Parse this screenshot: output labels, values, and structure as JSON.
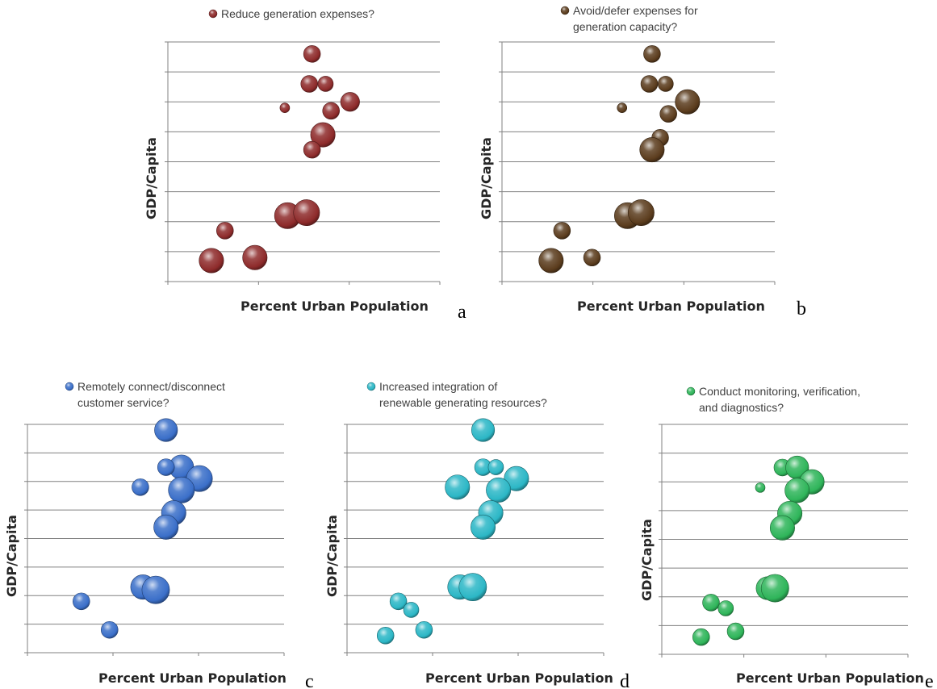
{
  "chart_data": [
    {
      "type": "scatter",
      "panel_label": "a",
      "legend": [
        "Reduce generation expenses?"
      ],
      "xlabel": "Percent Urban Population",
      "ylabel": "GDP/Capita",
      "color": "#8e2b2b",
      "grid": true,
      "legend_position": "top",
      "points": [
        {
          "x": 0.53,
          "y": 7.6,
          "size": 0.55
        },
        {
          "x": 0.52,
          "y": 6.6,
          "size": 0.55
        },
        {
          "x": 0.58,
          "y": 6.6,
          "size": 0.5
        },
        {
          "x": 0.43,
          "y": 5.8,
          "size": 0.3
        },
        {
          "x": 0.6,
          "y": 5.7,
          "size": 0.55
        },
        {
          "x": 0.67,
          "y": 6.0,
          "size": 0.62
        },
        {
          "x": 0.57,
          "y": 4.9,
          "size": 0.8
        },
        {
          "x": 0.53,
          "y": 4.4,
          "size": 0.55
        },
        {
          "x": 0.44,
          "y": 2.2,
          "size": 0.85
        },
        {
          "x": 0.51,
          "y": 2.3,
          "size": 0.85
        },
        {
          "x": 0.21,
          "y": 1.7,
          "size": 0.55
        },
        {
          "x": 0.16,
          "y": 0.7,
          "size": 0.8
        },
        {
          "x": 0.32,
          "y": 0.8,
          "size": 0.8
        }
      ]
    },
    {
      "type": "scatter",
      "panel_label": "b",
      "legend": [
        "Avoid/defer expenses for",
        "generation capacity?"
      ],
      "xlabel": "Percent Urban Population",
      "ylabel": "GDP/Capita",
      "color": "#5c3d1e",
      "grid": true,
      "legend_position": "top",
      "points": [
        {
          "x": 0.55,
          "y": 7.6,
          "size": 0.55
        },
        {
          "x": 0.54,
          "y": 6.6,
          "size": 0.55
        },
        {
          "x": 0.6,
          "y": 6.6,
          "size": 0.5
        },
        {
          "x": 0.44,
          "y": 5.8,
          "size": 0.3
        },
        {
          "x": 0.61,
          "y": 5.6,
          "size": 0.55
        },
        {
          "x": 0.68,
          "y": 6.0,
          "size": 0.8
        },
        {
          "x": 0.58,
          "y": 4.8,
          "size": 0.55
        },
        {
          "x": 0.55,
          "y": 4.4,
          "size": 0.8
        },
        {
          "x": 0.46,
          "y": 2.2,
          "size": 0.85
        },
        {
          "x": 0.51,
          "y": 2.3,
          "size": 0.85
        },
        {
          "x": 0.22,
          "y": 1.7,
          "size": 0.55
        },
        {
          "x": 0.18,
          "y": 0.7,
          "size": 0.8
        },
        {
          "x": 0.33,
          "y": 0.8,
          "size": 0.55
        }
      ]
    },
    {
      "type": "scatter",
      "panel_label": "c",
      "legend": [
        "Remotely connect/disconnect",
        "customer service?"
      ],
      "xlabel": "Percent Urban Population",
      "ylabel": "GDP/Capita",
      "color": "#3b6fc9",
      "grid": true,
      "legend_position": "top",
      "points": [
        {
          "x": 0.54,
          "y": 7.8,
          "size": 0.75
        },
        {
          "x": 0.6,
          "y": 6.5,
          "size": 0.8
        },
        {
          "x": 0.54,
          "y": 6.5,
          "size": 0.55
        },
        {
          "x": 0.67,
          "y": 6.1,
          "size": 0.85
        },
        {
          "x": 0.6,
          "y": 5.7,
          "size": 0.85
        },
        {
          "x": 0.44,
          "y": 5.8,
          "size": 0.55
        },
        {
          "x": 0.57,
          "y": 4.9,
          "size": 0.8
        },
        {
          "x": 0.54,
          "y": 4.4,
          "size": 0.8
        },
        {
          "x": 0.45,
          "y": 2.3,
          "size": 0.8
        },
        {
          "x": 0.5,
          "y": 2.2,
          "size": 0.9
        },
        {
          "x": 0.21,
          "y": 1.8,
          "size": 0.55
        },
        {
          "x": 0.32,
          "y": 0.8,
          "size": 0.55
        }
      ]
    },
    {
      "type": "scatter",
      "panel_label": "d",
      "legend": [
        "Increased integration of",
        "renewable generating resources?"
      ],
      "xlabel": "Percent Urban Population",
      "ylabel": "GDP/Capita",
      "color": "#2cb7c6",
      "grid": true,
      "legend_position": "top",
      "points": [
        {
          "x": 0.53,
          "y": 7.8,
          "size": 0.75
        },
        {
          "x": 0.53,
          "y": 6.5,
          "size": 0.55
        },
        {
          "x": 0.58,
          "y": 6.5,
          "size": 0.5
        },
        {
          "x": 0.66,
          "y": 6.1,
          "size": 0.8
        },
        {
          "x": 0.43,
          "y": 5.8,
          "size": 0.8
        },
        {
          "x": 0.59,
          "y": 5.7,
          "size": 0.8
        },
        {
          "x": 0.56,
          "y": 4.9,
          "size": 0.8
        },
        {
          "x": 0.53,
          "y": 4.4,
          "size": 0.8
        },
        {
          "x": 0.44,
          "y": 2.3,
          "size": 0.8
        },
        {
          "x": 0.49,
          "y": 2.3,
          "size": 0.9
        },
        {
          "x": 0.2,
          "y": 1.8,
          "size": 0.55
        },
        {
          "x": 0.25,
          "y": 1.5,
          "size": 0.5
        },
        {
          "x": 0.3,
          "y": 0.8,
          "size": 0.55
        },
        {
          "x": 0.15,
          "y": 0.6,
          "size": 0.55
        }
      ]
    },
    {
      "type": "scatter",
      "panel_label": "e",
      "legend": [
        "Conduct monitoring, verification,",
        "and diagnostics?"
      ],
      "xlabel": "Percent Urban Population",
      "ylabel": "GDP/Capita",
      "color": "#2fb55a",
      "grid": true,
      "legend_position": "top",
      "points": [
        {
          "x": 0.49,
          "y": 6.5,
          "size": 0.55
        },
        {
          "x": 0.55,
          "y": 6.5,
          "size": 0.75
        },
        {
          "x": 0.61,
          "y": 6.0,
          "size": 0.8
        },
        {
          "x": 0.4,
          "y": 5.8,
          "size": 0.3
        },
        {
          "x": 0.55,
          "y": 5.7,
          "size": 0.8
        },
        {
          "x": 0.52,
          "y": 4.9,
          "size": 0.8
        },
        {
          "x": 0.49,
          "y": 4.4,
          "size": 0.8
        },
        {
          "x": 0.43,
          "y": 2.3,
          "size": 0.75
        },
        {
          "x": 0.46,
          "y": 2.3,
          "size": 0.9
        },
        {
          "x": 0.2,
          "y": 1.8,
          "size": 0.55
        },
        {
          "x": 0.26,
          "y": 1.6,
          "size": 0.5
        },
        {
          "x": 0.3,
          "y": 0.8,
          "size": 0.55
        },
        {
          "x": 0.16,
          "y": 0.6,
          "size": 0.55
        }
      ]
    }
  ]
}
